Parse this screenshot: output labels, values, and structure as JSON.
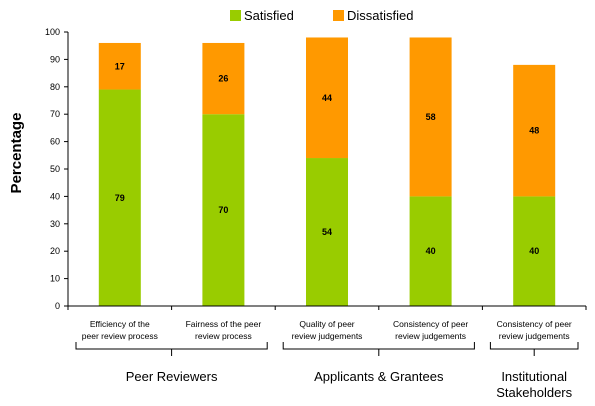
{
  "chart_data": {
    "type": "bar",
    "stacked": true,
    "title": "",
    "xlabel": "",
    "ylabel": "Percentage",
    "ylim": [
      0,
      100
    ],
    "yticks": [
      0,
      10,
      20,
      30,
      40,
      50,
      60,
      70,
      80,
      90,
      100
    ],
    "grid": false,
    "legend_position": "top",
    "categories": [
      [
        "Efficiency of the",
        "peer review process"
      ],
      [
        "Fairness of the peer",
        "review process"
      ],
      [
        "Quality of peer",
        "review judgements"
      ],
      [
        "Consistency of peer",
        "review judgements"
      ],
      [
        "Consistency of peer",
        "review judgements"
      ]
    ],
    "series": [
      {
        "name": "Satisfied",
        "color": "#99cc00",
        "values": [
          79,
          70,
          54,
          40,
          40
        ]
      },
      {
        "name": "Dissatisfied",
        "color": "#ff9900",
        "values": [
          17,
          26,
          44,
          58,
          48
        ]
      }
    ],
    "groups": [
      {
        "label": [
          "Peer Reviewers"
        ],
        "categories": [
          0,
          1
        ]
      },
      {
        "label": [
          "Applicants & Grantees"
        ],
        "categories": [
          2,
          3
        ]
      },
      {
        "label": [
          "Institutional",
          "Stakeholders"
        ],
        "categories": [
          4
        ]
      }
    ]
  }
}
